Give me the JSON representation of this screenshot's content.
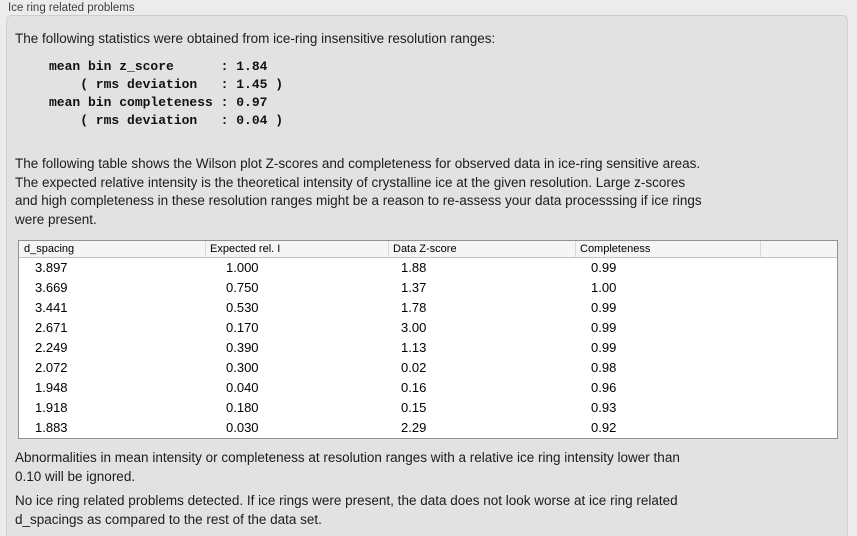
{
  "panel": {
    "title": "Ice ring related problems"
  },
  "stats": {
    "intro": "The following statistics were obtained from ice-ring insensitive resolution ranges:",
    "summary": "mean bin z_score      : 1.84\n    ( rms deviation   : 1.45 )\nmean bin completeness : 0.97\n    ( rms deviation   : 0.04 )",
    "mean_bin_z_score": "1.84",
    "z_score_rms_deviation": "1.45",
    "mean_bin_completeness": "0.97",
    "completeness_rms_deviation": "0.04"
  },
  "description": "The following table shows the Wilson plot Z-scores and completeness for observed data in ice-ring sensitive areas.\nThe expected relative intensity is the theoretical intensity of crystalline ice at the given resolution. Large z-scores\nand high completeness in these resolution ranges might be a reason to re-assess your data processsing if ice rings\nwere present.",
  "table": {
    "columns": [
      "d_spacing",
      "Expected rel. I",
      "Data Z-score",
      "Completeness"
    ],
    "rows": [
      [
        "3.897",
        "1.000",
        "1.88",
        "0.99"
      ],
      [
        "3.669",
        "0.750",
        "1.37",
        "1.00"
      ],
      [
        "3.441",
        "0.530",
        "1.78",
        "0.99"
      ],
      [
        "2.671",
        "0.170",
        "3.00",
        "0.99"
      ],
      [
        "2.249",
        "0.390",
        "1.13",
        "0.99"
      ],
      [
        "2.072",
        "0.300",
        "0.02",
        "0.98"
      ],
      [
        "1.948",
        "0.040",
        "0.16",
        "0.96"
      ],
      [
        "1.918",
        "0.180",
        "0.15",
        "0.93"
      ],
      [
        "1.883",
        "0.030",
        "2.29",
        "0.92"
      ]
    ]
  },
  "notes": {
    "ignore": "Abnormalities in mean intensity or completeness at resolution ranges with a relative ice ring intensity lower than\n0.10 will be ignored.",
    "conclusion": "No ice ring related problems detected. If ice rings were present, the data does not look worse at ice ring related\nd_spacings as compared to the rest of the data set."
  },
  "colors": {
    "page_background": "#ececec",
    "groupbox_background": "#e2e2e2",
    "groupbox_border": "#d2d2d2",
    "table_border": "#929292",
    "table_header_background": "#f5f5f5",
    "text": "#1c1c1c"
  }
}
